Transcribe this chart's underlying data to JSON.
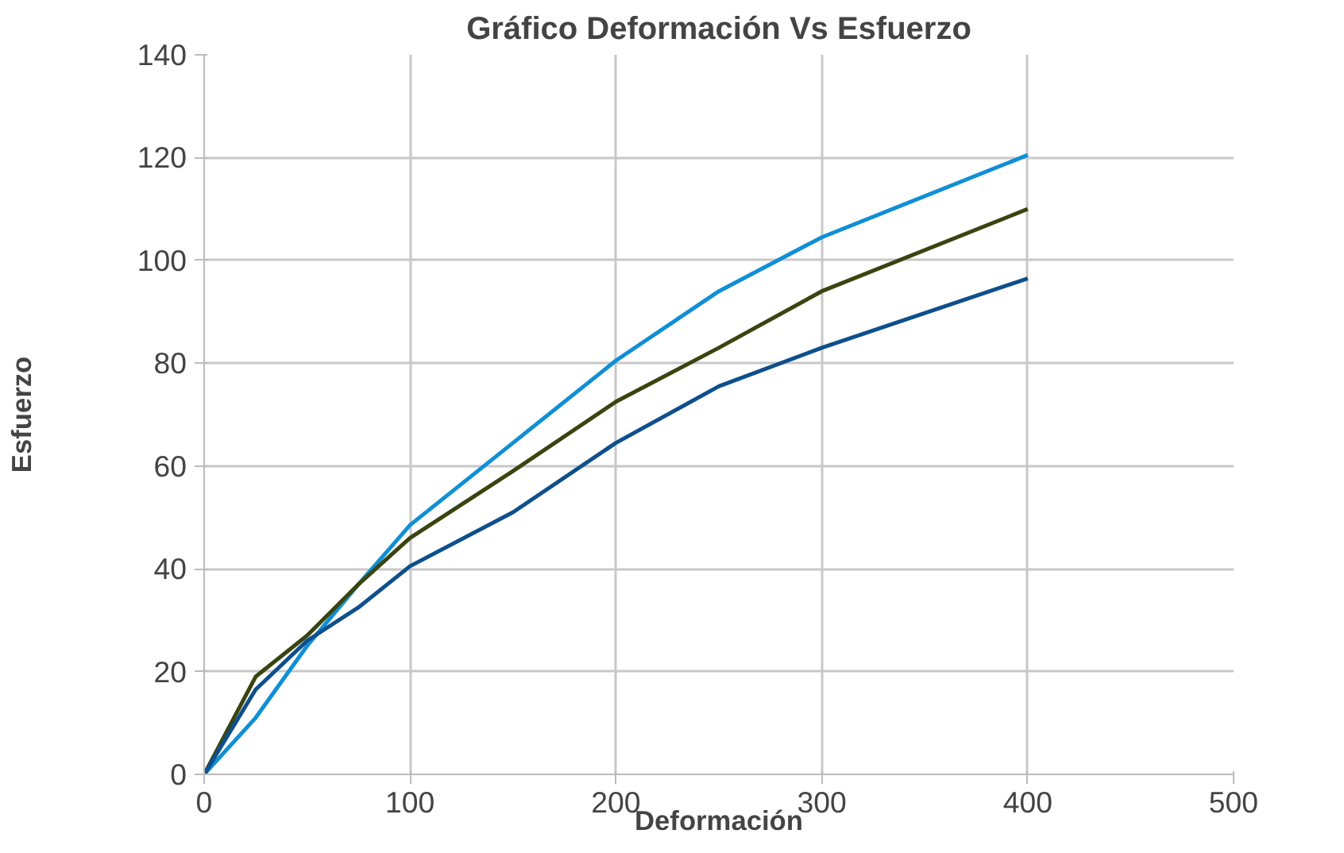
{
  "chart_data": {
    "type": "line",
    "title": "Gráfico Deformación Vs Esfuerzo",
    "xlabel": "Deformación",
    "ylabel": "Esfuerzo",
    "x": [
      0,
      25,
      50,
      75,
      100,
      150,
      200,
      250,
      300,
      400
    ],
    "series": [
      {
        "color": "#0f8fd6",
        "values": [
          0,
          11,
          25,
          37,
          48.5,
          64.5,
          80.5,
          94,
          104.5,
          120.5
        ]
      },
      {
        "color": "#3a4410",
        "values": [
          0,
          19,
          27,
          37,
          46,
          59,
          72.5,
          83,
          94,
          110
        ]
      },
      {
        "color": "#0e4f8c",
        "values": [
          0,
          16.5,
          26,
          32.5,
          40.5,
          51,
          64.5,
          75.5,
          83,
          96.5
        ]
      }
    ],
    "xlim": [
      0,
      500
    ],
    "xticks": [
      0,
      100,
      200,
      300,
      400,
      500
    ],
    "ylim": [
      0,
      140
    ],
    "yticks": [
      0,
      20,
      40,
      60,
      80,
      100,
      120,
      140
    ],
    "grid": true,
    "marker": "none",
    "line_style": "solid"
  }
}
